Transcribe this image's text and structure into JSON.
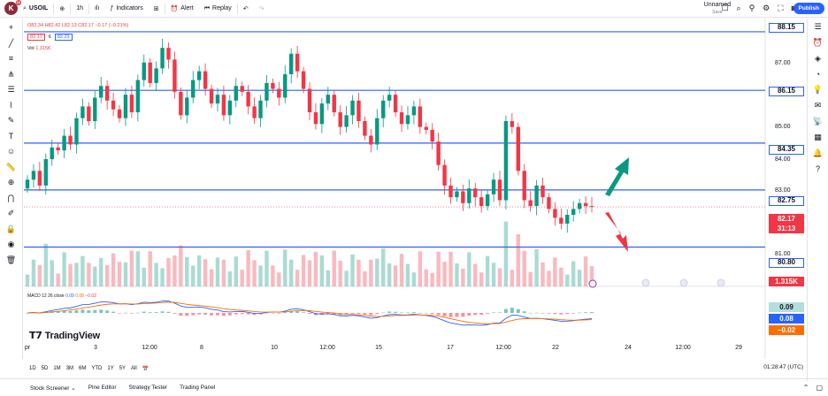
{
  "topbar": {
    "logo_letter": "K",
    "logo_badge": "11",
    "symbol": "USOIL",
    "interval": "1h",
    "indicators_label": "Indicators",
    "alert_label": "Alert",
    "replay_label": "Replay",
    "layout_name": "Unnamed",
    "layout_status": "Save",
    "publish_label": "Publish"
  },
  "legend": {
    "ohlc": "O82.34  H82.42  L82.13  C82.17  −0.17 (−0.21%)",
    "bid": "82.17",
    "spread": "6",
    "ask": "82.23",
    "vol_label": "Vol",
    "vol_value": "1.315K",
    "macd_name": "MACD",
    "macd_params": "12 26 close",
    "macd_v1": "0.09",
    "macd_v2": "0.08",
    "macd_v3": "−0.02"
  },
  "price_scale": {
    "ticks": [
      "87.00",
      "85.00",
      "84.00",
      "83.00",
      "81.00"
    ],
    "levels": [
      "88.15",
      "86.15",
      "84.35",
      "82.75",
      "80.80"
    ],
    "last_price": "82.17",
    "countdown": "31:13",
    "volume_label": "1.315K",
    "macd_labels": [
      "0.09",
      "0.08",
      "−0.02"
    ]
  },
  "time_axis": {
    "ticks": [
      "pr",
      "3",
      "12:00",
      "8",
      "10",
      "12:00",
      "15",
      "17",
      "12:00",
      "22",
      "24",
      "12:00",
      "29"
    ]
  },
  "ranges": [
    "1D",
    "5D",
    "1M",
    "3M",
    "6M",
    "YTD",
    "1Y",
    "5Y",
    "All"
  ],
  "clock": "01:28:47 (UTC)",
  "bottom_tabs": [
    "Stock Screener",
    "Pine Editor",
    "Strategy Tester",
    "Trading Panel"
  ],
  "brand": "TradingView",
  "colors": {
    "up": "#089981",
    "down": "#f23645",
    "level_line": "#2962ff",
    "macd_line": "#2962ff",
    "signal_line": "#ff6d00",
    "arrow_up": "#089981",
    "arrow_down": "#f23645"
  },
  "chart_data": {
    "type": "candlestick",
    "symbol": "USOIL",
    "interval": "1h",
    "ylim": [
      80.0,
      88.6
    ],
    "horizontal_levels": [
      88.15,
      86.15,
      84.35,
      82.75,
      80.8
    ],
    "closes": [
      83.1,
      83.4,
      82.9,
      83.8,
      84.2,
      84.1,
      84.6,
      84.3,
      85.2,
      85.6,
      85.1,
      85.9,
      86.3,
      85.8,
      85.5,
      85.2,
      86.0,
      85.4,
      86.5,
      87.1,
      86.4,
      86.9,
      87.6,
      87.2,
      86.1,
      85.3,
      85.9,
      86.5,
      86.8,
      86.2,
      85.7,
      86.0,
      85.3,
      85.8,
      86.3,
      86.1,
      85.6,
      85.2,
      85.8,
      86.4,
      86.2,
      85.9,
      86.7,
      87.4,
      86.8,
      86.2,
      85.4,
      85.0,
      85.7,
      86.0,
      85.4,
      84.9,
      85.3,
      85.8,
      85.1,
      84.6,
      84.3,
      85.2,
      85.8,
      86.0,
      85.4,
      85.0,
      85.3,
      85.6,
      84.9,
      84.8,
      84.4,
      83.6,
      82.9,
      82.5,
      82.7,
      82.3,
      82.8,
      82.5,
      82.2,
      82.6,
      83.1,
      82.4,
      85.1,
      84.9,
      83.4,
      82.4,
      82.2,
      82.9,
      82.5,
      82.1,
      81.8,
      81.6,
      81.9,
      82.1,
      82.3,
      82.2,
      82.17
    ],
    "volume_last": "1.315K",
    "macd": {
      "macd": 0.09,
      "signal": 0.08,
      "histogram": -0.02
    },
    "annotations": [
      "up arrow (green) near 84.0",
      "down arrow (red) toward 80.8"
    ]
  }
}
